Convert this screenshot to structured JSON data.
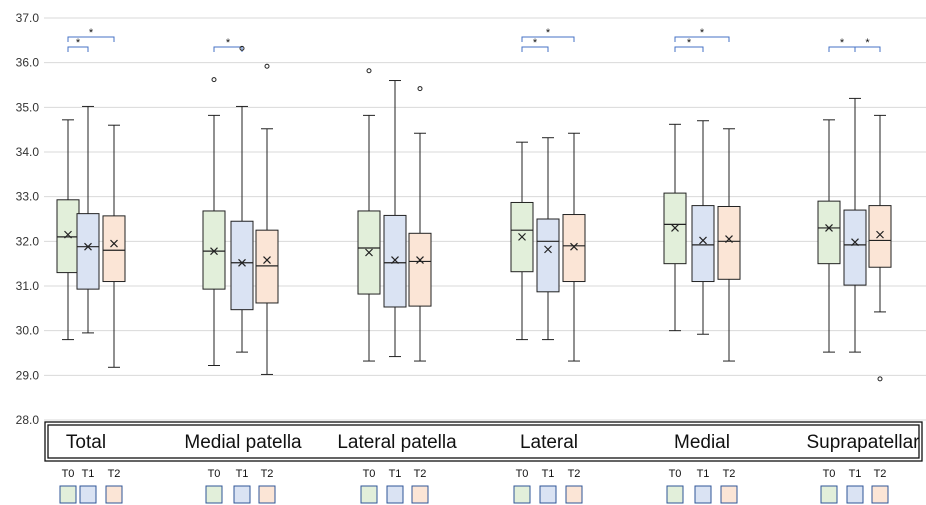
{
  "chart_data": {
    "type": "box",
    "title": "",
    "xlabel": "",
    "ylabel": "",
    "ylim": [
      28.0,
      37.0
    ],
    "yticks": [
      "28.0",
      "29.0",
      "30.0",
      "31.0",
      "32.0",
      "33.0",
      "34.0",
      "35.0",
      "36.0",
      "37.0"
    ],
    "grid": true,
    "timepoints": [
      "T0",
      "T1",
      "T2"
    ],
    "colors": {
      "T0": "#e2efda",
      "T1": "#dae3f3",
      "T2": "#fbe5d6",
      "box_stroke": "#222222",
      "significance": "#4472c4"
    },
    "significance_marker": "*",
    "groups": [
      {
        "name": "Total",
        "boxes": [
          {
            "tp": "T0",
            "min": 29.8,
            "q1": 31.3,
            "median": 32.1,
            "q3": 32.93,
            "max": 34.72,
            "mean": 32.15,
            "outliers": []
          },
          {
            "tp": "T1",
            "min": 29.95,
            "q1": 30.93,
            "median": 31.88,
            "q3": 32.62,
            "max": 35.02,
            "mean": 31.88,
            "outliers": []
          },
          {
            "tp": "T2",
            "min": 29.18,
            "q1": 31.1,
            "median": 31.8,
            "q3": 32.57,
            "max": 34.6,
            "mean": 31.95,
            "outliers": []
          }
        ],
        "significance": [
          {
            "from": "T0",
            "to": "T1",
            "label": "*"
          },
          {
            "from": "T0",
            "to": "T2",
            "label": "*"
          }
        ]
      },
      {
        "name": "Medial patella",
        "boxes": [
          {
            "tp": "T0",
            "min": 29.22,
            "q1": 30.93,
            "median": 31.78,
            "q3": 32.68,
            "max": 34.82,
            "mean": 31.78,
            "outliers": [
              35.62
            ]
          },
          {
            "tp": "T1",
            "min": 29.52,
            "q1": 30.47,
            "median": 31.52,
            "q3": 32.45,
            "max": 35.02,
            "mean": 31.52,
            "outliers": [
              36.32
            ]
          },
          {
            "tp": "T2",
            "min": 29.02,
            "q1": 30.62,
            "median": 31.45,
            "q3": 32.25,
            "max": 34.52,
            "mean": 31.58,
            "outliers": [
              35.92
            ]
          }
        ],
        "significance": [
          {
            "from": "T0",
            "to": "T1",
            "label": "*"
          }
        ]
      },
      {
        "name": "Lateral patella",
        "boxes": [
          {
            "tp": "T0",
            "min": 29.32,
            "q1": 30.82,
            "median": 31.85,
            "q3": 32.68,
            "max": 34.82,
            "mean": 31.75,
            "outliers": [
              35.82
            ]
          },
          {
            "tp": "T1",
            "min": 29.42,
            "q1": 30.53,
            "median": 31.52,
            "q3": 32.58,
            "max": 35.6,
            "mean": 31.58,
            "outliers": []
          },
          {
            "tp": "T2",
            "min": 29.32,
            "q1": 30.55,
            "median": 31.55,
            "q3": 32.18,
            "max": 34.42,
            "mean": 31.58,
            "outliers": [
              35.42
            ]
          }
        ],
        "significance": []
      },
      {
        "name": "Lateral",
        "boxes": [
          {
            "tp": "T0",
            "min": 29.8,
            "q1": 31.32,
            "median": 32.25,
            "q3": 32.87,
            "max": 34.22,
            "mean": 32.1,
            "outliers": []
          },
          {
            "tp": "T1",
            "min": 29.8,
            "q1": 30.87,
            "median": 32.0,
            "q3": 32.5,
            "max": 34.32,
            "mean": 31.82,
            "outliers": []
          },
          {
            "tp": "T2",
            "min": 29.32,
            "q1": 31.1,
            "median": 31.9,
            "q3": 32.6,
            "max": 34.42,
            "mean": 31.88,
            "outliers": []
          }
        ],
        "significance": [
          {
            "from": "T0",
            "to": "T1",
            "label": "*"
          },
          {
            "from": "T0",
            "to": "T2",
            "label": "*"
          }
        ]
      },
      {
        "name": "Medial",
        "boxes": [
          {
            "tp": "T0",
            "min": 30.0,
            "q1": 31.5,
            "median": 32.38,
            "q3": 33.08,
            "max": 34.62,
            "mean": 32.3,
            "outliers": []
          },
          {
            "tp": "T1",
            "min": 29.92,
            "q1": 31.1,
            "median": 31.92,
            "q3": 32.8,
            "max": 34.7,
            "mean": 32.02,
            "outliers": []
          },
          {
            "tp": "T2",
            "min": 29.32,
            "q1": 31.15,
            "median": 32.0,
            "q3": 32.78,
            "max": 34.52,
            "mean": 32.05,
            "outliers": []
          }
        ],
        "significance": [
          {
            "from": "T0",
            "to": "T1",
            "label": "*"
          },
          {
            "from": "T0",
            "to": "T2",
            "label": "*"
          }
        ]
      },
      {
        "name": "Suprapatellar",
        "boxes": [
          {
            "tp": "T0",
            "min": 29.52,
            "q1": 31.5,
            "median": 32.3,
            "q3": 32.9,
            "max": 34.72,
            "mean": 32.3,
            "outliers": []
          },
          {
            "tp": "T1",
            "min": 29.52,
            "q1": 31.02,
            "median": 31.92,
            "q3": 32.7,
            "max": 35.2,
            "mean": 31.98,
            "outliers": []
          },
          {
            "tp": "T2",
            "min": 30.42,
            "q1": 31.42,
            "median": 32.02,
            "q3": 32.8,
            "max": 34.82,
            "mean": 32.15,
            "outliers": [
              28.92
            ]
          }
        ],
        "significance": [
          {
            "from": "T0",
            "to": "T1",
            "label": "*"
          },
          {
            "from": "T1",
            "to": "T2",
            "label": "*"
          }
        ]
      }
    ]
  }
}
